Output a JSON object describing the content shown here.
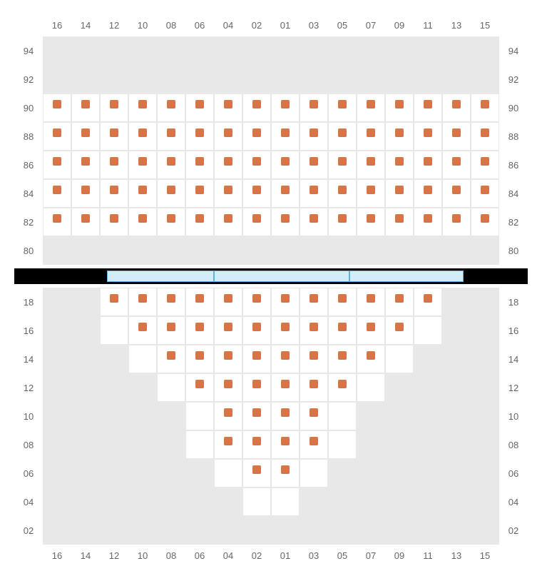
{
  "columns": [
    "16",
    "14",
    "12",
    "10",
    "08",
    "06",
    "04",
    "02",
    "01",
    "03",
    "05",
    "07",
    "09",
    "11",
    "13",
    "15"
  ],
  "seat_color": "#d87548",
  "empty_bg": "#e8e8e8",
  "avail_bg": "#ffffff",
  "grid_line": "#e8e8e8",
  "label_color": "#666666",
  "divider_bg": "#000000",
  "divider_seg_bg": "#d4ecf9",
  "divider_seg_border": "#5ab4e0",
  "divider_segments": [
    150,
    190,
    160
  ],
  "upper": {
    "rows": [
      {
        "label": "94",
        "cells": [
          "e",
          "e",
          "e",
          "e",
          "e",
          "e",
          "e",
          "e",
          "e",
          "e",
          "e",
          "e",
          "e",
          "e",
          "e",
          "e"
        ]
      },
      {
        "label": "92",
        "cells": [
          "e",
          "e",
          "e",
          "e",
          "e",
          "e",
          "e",
          "e",
          "e",
          "e",
          "e",
          "e",
          "e",
          "e",
          "e",
          "e"
        ]
      },
      {
        "label": "90",
        "cells": [
          "a",
          "a",
          "a",
          "a",
          "a",
          "a",
          "a",
          "a",
          "a",
          "a",
          "a",
          "a",
          "a",
          "a",
          "a",
          "a"
        ]
      },
      {
        "label": "88",
        "cells": [
          "a",
          "a",
          "a",
          "a",
          "a",
          "a",
          "a",
          "a",
          "a",
          "a",
          "a",
          "a",
          "a",
          "a",
          "a",
          "a"
        ]
      },
      {
        "label": "86",
        "cells": [
          "a",
          "a",
          "a",
          "a",
          "a",
          "a",
          "a",
          "a",
          "a",
          "a",
          "a",
          "a",
          "a",
          "a",
          "a",
          "a"
        ]
      },
      {
        "label": "84",
        "cells": [
          "a",
          "a",
          "a",
          "a",
          "a",
          "a",
          "a",
          "a",
          "a",
          "a",
          "a",
          "a",
          "a",
          "a",
          "a",
          "a"
        ]
      },
      {
        "label": "82",
        "cells": [
          "a",
          "a",
          "a",
          "a",
          "a",
          "a",
          "a",
          "a",
          "a",
          "a",
          "a",
          "a",
          "a",
          "a",
          "a",
          "a"
        ]
      },
      {
        "label": "80",
        "cells": [
          "e",
          "e",
          "e",
          "e",
          "e",
          "e",
          "e",
          "e",
          "e",
          "e",
          "e",
          "e",
          "e",
          "e",
          "e",
          "e"
        ]
      }
    ]
  },
  "lower": {
    "rows": [
      {
        "label": "18",
        "cells": [
          "e",
          "e",
          "a",
          "a",
          "a",
          "a",
          "a",
          "a",
          "a",
          "a",
          "a",
          "a",
          "a",
          "a",
          "e",
          "e"
        ]
      },
      {
        "label": "16",
        "cells": [
          "e",
          "e",
          "b",
          "a",
          "a",
          "a",
          "a",
          "a",
          "a",
          "a",
          "a",
          "a",
          "a",
          "b",
          "e",
          "e"
        ]
      },
      {
        "label": "14",
        "cells": [
          "e",
          "e",
          "e",
          "b",
          "a",
          "a",
          "a",
          "a",
          "a",
          "a",
          "a",
          "a",
          "b",
          "e",
          "e",
          "e"
        ]
      },
      {
        "label": "12",
        "cells": [
          "e",
          "e",
          "e",
          "e",
          "b",
          "a",
          "a",
          "a",
          "a",
          "a",
          "a",
          "b",
          "e",
          "e",
          "e",
          "e"
        ]
      },
      {
        "label": "10",
        "cells": [
          "e",
          "e",
          "e",
          "e",
          "e",
          "b",
          "a",
          "a",
          "a",
          "a",
          "b",
          "e",
          "e",
          "e",
          "e",
          "e"
        ]
      },
      {
        "label": "08",
        "cells": [
          "e",
          "e",
          "e",
          "e",
          "e",
          "b",
          "a",
          "a",
          "a",
          "a",
          "b",
          "e",
          "e",
          "e",
          "e",
          "e"
        ]
      },
      {
        "label": "06",
        "cells": [
          "e",
          "e",
          "e",
          "e",
          "e",
          "e",
          "b",
          "a",
          "a",
          "b",
          "e",
          "e",
          "e",
          "e",
          "e",
          "e"
        ]
      },
      {
        "label": "04",
        "cells": [
          "e",
          "e",
          "e",
          "e",
          "e",
          "e",
          "e",
          "b",
          "b",
          "e",
          "e",
          "e",
          "e",
          "e",
          "e",
          "e"
        ]
      },
      {
        "label": "02",
        "cells": [
          "e",
          "e",
          "e",
          "e",
          "e",
          "e",
          "e",
          "e",
          "e",
          "e",
          "e",
          "e",
          "e",
          "e",
          "e",
          "e"
        ]
      }
    ]
  }
}
